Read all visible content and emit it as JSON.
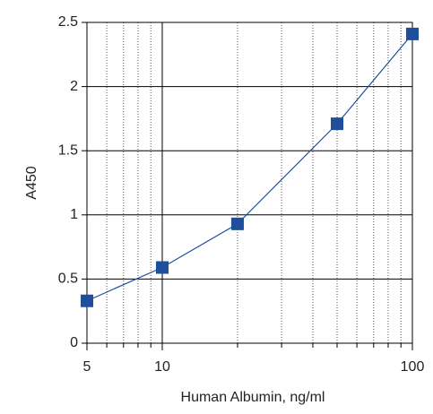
{
  "chart_data": {
    "type": "line",
    "xlabel": "Human Albumin, ng/ml",
    "ylabel": "A450",
    "x": [
      5,
      10,
      20,
      50,
      100
    ],
    "series": [
      {
        "color": "#1f4e9c",
        "values": [
          0.33,
          0.59,
          0.93,
          1.71,
          2.41
        ]
      }
    ],
    "xlog": true,
    "xlim": [
      5,
      100
    ],
    "xticks": [
      5,
      10,
      100
    ],
    "xminor": [
      6,
      7,
      8,
      9,
      20,
      30,
      40,
      50,
      60,
      70,
      80,
      90
    ],
    "ylim": [
      0,
      2.5
    ],
    "yticks": [
      0,
      0.5,
      1,
      1.5,
      2,
      2.5
    ],
    "grid": true
  }
}
